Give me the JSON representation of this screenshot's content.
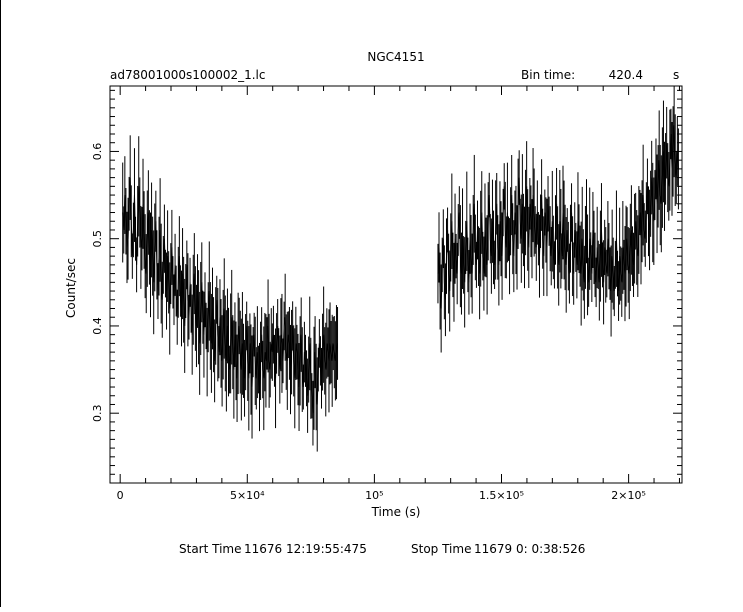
{
  "header": {
    "title": "NGC4151",
    "filename": "ad78001000s100002_1.lc",
    "bin_time_label": "Bin time:",
    "bin_time_value": "420.4",
    "bin_time_unit": "s"
  },
  "footer": {
    "start_label": "Start Time",
    "start_value": "11676 12:19:55:475",
    "stop_label": "Stop Time",
    "stop_value": "11679  0: 0:38:526"
  },
  "chart_data": {
    "type": "line",
    "title": "NGC4151",
    "xlabel": "Time (s)",
    "ylabel": "Count/sec",
    "xlim": [
      -4000,
      221000
    ],
    "ylim": [
      0.22,
      0.675
    ],
    "grid": false,
    "x_ticks": [
      {
        "value": 0,
        "label": "0"
      },
      {
        "value": 50000,
        "label": "5×10⁴"
      },
      {
        "value": 100000,
        "label": "10⁵"
      },
      {
        "value": 150000,
        "label": "1.5×10⁵"
      },
      {
        "value": 200000,
        "label": "2×10⁵"
      }
    ],
    "y_ticks": [
      {
        "value": 0.3,
        "label": "0.3"
      },
      {
        "value": 0.4,
        "label": "0.4"
      },
      {
        "value": 0.5,
        "label": "0.5"
      },
      {
        "value": 0.6,
        "label": "0.6"
      }
    ],
    "series": [
      {
        "segments": [
          {
            "x_start": 1000,
            "dx": 420.4,
            "values": [
              0.53,
              0.51,
              0.55,
              0.52,
              0.49,
              0.5,
              0.54,
              0.57,
              0.52,
              0.48,
              0.51,
              0.55,
              0.5,
              0.47,
              0.52,
              0.56,
              0.53,
              0.49,
              0.5,
              0.54,
              0.51,
              0.48,
              0.46,
              0.5,
              0.53,
              0.49,
              0.47,
              0.51,
              0.48,
              0.45,
              0.49,
              0.52,
              0.47,
              0.44,
              0.48,
              0.51,
              0.46,
              0.43,
              0.47,
              0.5,
              0.46,
              0.44,
              0.48,
              0.45,
              0.42,
              0.46,
              0.49,
              0.45,
              0.43,
              0.47,
              0.44,
              0.41,
              0.45,
              0.48,
              0.44,
              0.42,
              0.46,
              0.43,
              0.4,
              0.44,
              0.47,
              0.43,
              0.41,
              0.45,
              0.42,
              0.39,
              0.43,
              0.46,
              0.42,
              0.4,
              0.44,
              0.41,
              0.38,
              0.42,
              0.45,
              0.41,
              0.39,
              0.43,
              0.4,
              0.37,
              0.41,
              0.44,
              0.4,
              0.38,
              0.42,
              0.39,
              0.36,
              0.4,
              0.43,
              0.39,
              0.37,
              0.41,
              0.38,
              0.36,
              0.39,
              0.42,
              0.38,
              0.36,
              0.4,
              0.37,
              0.35,
              0.38,
              0.41,
              0.37,
              0.35,
              0.39,
              0.36,
              0.34,
              0.38,
              0.4,
              0.37,
              0.35,
              0.38,
              0.36,
              0.34,
              0.37,
              0.4,
              0.36,
              0.34,
              0.38,
              0.35,
              0.33,
              0.37,
              0.39,
              0.36,
              0.34,
              0.37,
              0.35,
              0.33,
              0.36,
              0.39,
              0.35,
              0.34,
              0.37,
              0.36,
              0.38,
              0.4,
              0.36,
              0.35,
              0.38,
              0.37,
              0.39,
              0.36,
              0.34,
              0.38,
              0.4,
              0.37,
              0.35,
              0.39,
              0.38,
              0.36,
              0.4,
              0.41,
              0.37,
              0.36,
              0.39,
              0.38,
              0.35,
              0.37,
              0.4,
              0.36,
              0.34,
              0.38,
              0.37,
              0.35,
              0.33,
              0.36,
              0.39,
              0.35,
              0.33,
              0.37,
              0.36,
              0.34,
              0.32,
              0.35,
              0.38,
              0.34,
              0.32,
              0.3,
              0.34,
              0.37,
              0.33,
              0.31,
              0.35,
              0.38,
              0.36,
              0.34,
              0.37,
              0.39,
              0.36,
              0.35,
              0.38,
              0.37,
              0.36,
              0.38,
              0.37,
              0.36,
              0.38,
              0.37,
              0.36,
              0.37,
              0.38
            ]
          },
          {
            "x_start": 125000,
            "dx": 420.4,
            "values": [
              0.46,
              0.49,
              0.44,
              0.42,
              0.47,
              0.5,
              0.45,
              0.43,
              0.48,
              0.51,
              0.46,
              0.44,
              0.49,
              0.52,
              0.47,
              0.45,
              0.5,
              0.48,
              0.46,
              0.51,
              0.53,
              0.48,
              0.46,
              0.5,
              0.47,
              0.45,
              0.49,
              0.52,
              0.47,
              0.45,
              0.5,
              0.48,
              0.46,
              0.51,
              0.54,
              0.49,
              0.47,
              0.51,
              0.48,
              0.46,
              0.5,
              0.53,
              0.48,
              0.46,
              0.51,
              0.49,
              0.47,
              0.52,
              0.55,
              0.5,
              0.48,
              0.52,
              0.49,
              0.47,
              0.51,
              0.54,
              0.49,
              0.47,
              0.52,
              0.5,
              0.48,
              0.53,
              0.56,
              0.51,
              0.49,
              0.53,
              0.5,
              0.48,
              0.52,
              0.55,
              0.5,
              0.48,
              0.53,
              0.51,
              0.49,
              0.54,
              0.57,
              0.52,
              0.5,
              0.54,
              0.51,
              0.49,
              0.53,
              0.56,
              0.51,
              0.49,
              0.54,
              0.52,
              0.5,
              0.55,
              0.53,
              0.51,
              0.49,
              0.53,
              0.5,
              0.48,
              0.52,
              0.55,
              0.5,
              0.48,
              0.53,
              0.51,
              0.49,
              0.54,
              0.52,
              0.5,
              0.48,
              0.52,
              0.49,
              0.47,
              0.51,
              0.54,
              0.49,
              0.47,
              0.52,
              0.5,
              0.48,
              0.53,
              0.51,
              0.49,
              0.47,
              0.51,
              0.48,
              0.46,
              0.5,
              0.53,
              0.48,
              0.46,
              0.51,
              0.49,
              0.47,
              0.52,
              0.5,
              0.48,
              0.46,
              0.5,
              0.47,
              0.45,
              0.49,
              0.52,
              0.47,
              0.45,
              0.5,
              0.48,
              0.46,
              0.51,
              0.49,
              0.47,
              0.45,
              0.49,
              0.47,
              0.45,
              0.48,
              0.51,
              0.47,
              0.45,
              0.49,
              0.47,
              0.46,
              0.5,
              0.48,
              0.46,
              0.44,
              0.48,
              0.46,
              0.44,
              0.47,
              0.5,
              0.46,
              0.44,
              0.48,
              0.46,
              0.45,
              0.49,
              0.47,
              0.46,
              0.48,
              0.5,
              0.47,
              0.46,
              0.49,
              0.51,
              0.48,
              0.47,
              0.5,
              0.52,
              0.49,
              0.48,
              0.51,
              0.53,
              0.5,
              0.52,
              0.55,
              0.51,
              0.5,
              0.53,
              0.56,
              0.52,
              0.51,
              0.54,
              0.57,
              0.53,
              0.52,
              0.55,
              0.58,
              0.54,
              0.56,
              0.59,
              0.55,
              0.54,
              0.57,
              0.6,
              0.56,
              0.58,
              0.61,
              0.57,
              0.56,
              0.59,
              0.62,
              0.58,
              0.6,
              0.63,
              0.59,
              0.57,
              0.6,
              0.58
            ]
          }
        ],
        "error_min": 0.025,
        "error_max": 0.06
      }
    ]
  }
}
